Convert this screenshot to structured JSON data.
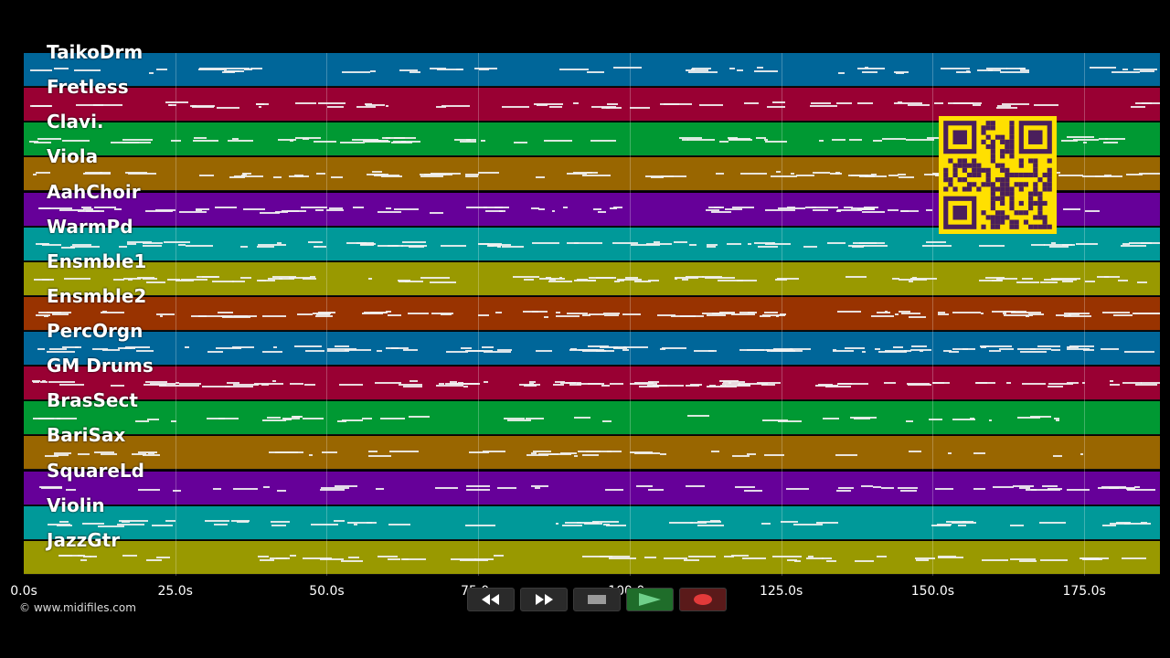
{
  "tracks": [
    {
      "name": "TaikoDrm",
      "color": "#006699"
    },
    {
      "name": "Fretless",
      "color": "#990033"
    },
    {
      "name": "Clavi.",
      "color": "#009933"
    },
    {
      "name": "Viola",
      "color": "#996600"
    },
    {
      "name": "AahChoir",
      "color": "#660099"
    },
    {
      "name": "WarmPd",
      "color": "#009999"
    },
    {
      "name": "Ensmble1",
      "color": "#999900"
    },
    {
      "name": "Ensmble2",
      "color": "#993300"
    },
    {
      "name": "PercOrgn",
      "color": "#006699"
    },
    {
      "name": "GM Drums",
      "color": "#990033"
    },
    {
      "name": "BrasSect",
      "color": "#009933"
    },
    {
      "name": "BariSax",
      "color": "#996600"
    },
    {
      "name": "SquareLd",
      "color": "#660099"
    },
    {
      "name": "Violin",
      "color": "#009999"
    },
    {
      "name": "JazzGtr",
      "color": "#999900"
    }
  ],
  "timeline": {
    "labels": [
      "0.0s",
      "25.0s",
      "50.0s",
      "75.0s",
      "100.0s",
      "125.0s",
      "150.0s",
      "175.0s"
    ],
    "seconds": [
      0,
      25,
      50,
      75,
      100,
      125,
      150,
      175
    ],
    "max_seconds": 187.5
  },
  "transport": {
    "rewind": "rewind-icon",
    "fast_forward": "fast-forward-icon",
    "stop": "stop-icon",
    "play": "play-icon",
    "record": "record-icon"
  },
  "copyright": "© www.midifiles.com"
}
